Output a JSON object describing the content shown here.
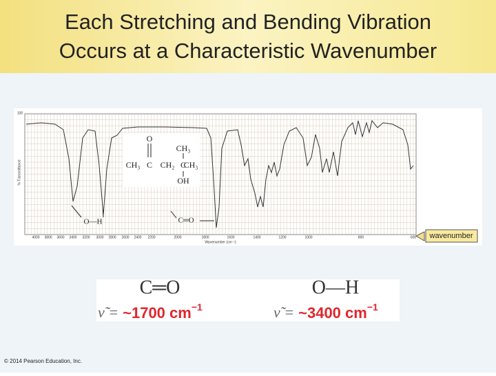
{
  "slide": {
    "title": [
      "Each Stretching and Bending Vibration",
      "Occurs at a Characteristic Wavenumber"
    ],
    "spectrum": {
      "y_label": "% Transmittance",
      "y_top": "100",
      "x_ticks": [
        "4000",
        "3800",
        "3600",
        "3400",
        "3200",
        "3000",
        "2800",
        "2600",
        "2400",
        "2200",
        "2000",
        "1800",
        "1600",
        "1400",
        "1200",
        "1000",
        "800",
        "600"
      ],
      "x_label": "Wavenumber (cm⁻¹)",
      "molecule": [
        "O",
        "CH₃",
        "CH₃",
        "C",
        "CH₂",
        "C",
        "CH₃",
        "OH"
      ],
      "peak_labels": [
        "O—H",
        "C═O"
      ],
      "callout": "wavenumber"
    },
    "formulas": [
      {
        "bond": "C═O",
        "symbol": "ν̃ =",
        "value": "~1700 cm",
        "exponent": "−1"
      },
      {
        "bond": "O—H",
        "symbol": "ν̃ =",
        "value": "~3400 cm",
        "exponent": "−1"
      }
    ],
    "footer": "© 2014 Pearson Education, Inc."
  }
}
